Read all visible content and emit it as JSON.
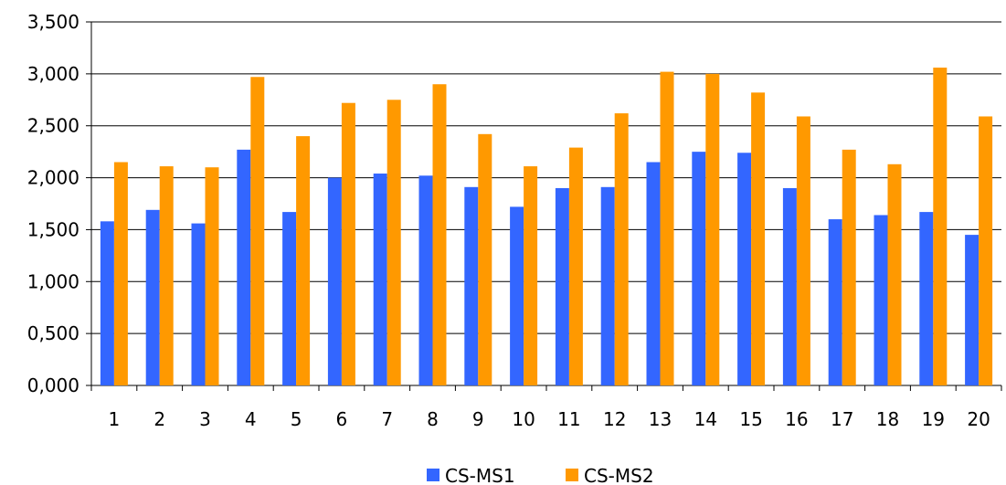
{
  "chart_data": {
    "type": "bar",
    "categories": [
      "1",
      "2",
      "3",
      "4",
      "5",
      "6",
      "7",
      "8",
      "9",
      "10",
      "11",
      "12",
      "13",
      "14",
      "15",
      "16",
      "17",
      "18",
      "19",
      "20"
    ],
    "series": [
      {
        "name": "CS-MS1",
        "color": "#3366ff",
        "values": [
          1.58,
          1.69,
          1.56,
          2.27,
          1.67,
          2.0,
          2.04,
          2.02,
          1.91,
          1.72,
          1.9,
          1.91,
          2.15,
          2.25,
          2.24,
          1.9,
          1.6,
          1.64,
          1.67,
          1.45
        ]
      },
      {
        "name": "CS-MS2",
        "color": "#ff9900",
        "values": [
          2.15,
          2.11,
          2.1,
          2.97,
          2.4,
          2.72,
          2.75,
          2.9,
          2.42,
          2.11,
          2.29,
          2.62,
          3.02,
          3.0,
          2.82,
          2.59,
          2.27,
          2.13,
          3.06,
          2.59
        ]
      }
    ],
    "y_ticks": [
      "0,000",
      "0,500",
      "1,000",
      "1,500",
      "2,000",
      "2,500",
      "3,000",
      "3,500"
    ],
    "ylim": [
      0,
      3.5
    ],
    "grid": true,
    "legend_position": "bottom",
    "title": "",
    "xlabel": "",
    "ylabel": ""
  }
}
